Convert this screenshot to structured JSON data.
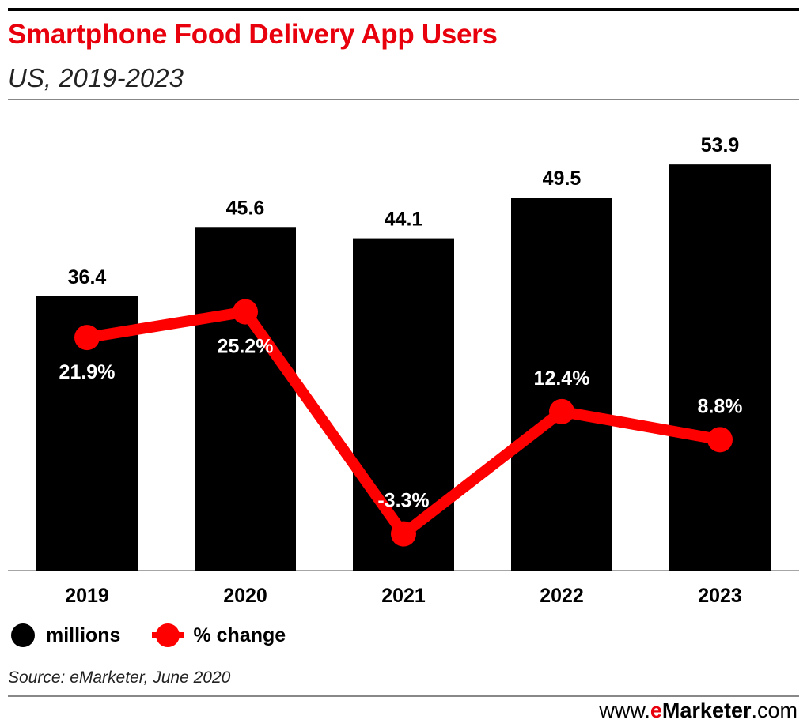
{
  "header": {
    "title": "Smartphone Food Delivery App Users",
    "subtitle": "US, 2019-2023"
  },
  "chart_data": {
    "type": "bar",
    "title": "Smartphone Food Delivery App Users",
    "subtitle": "US, 2019-2023",
    "categories": [
      "2019",
      "2020",
      "2021",
      "2022",
      "2023"
    ],
    "series": [
      {
        "name": "millions",
        "type": "bar",
        "values": [
          36.4,
          45.6,
          44.1,
          49.5,
          53.9
        ],
        "labels": [
          "36.4",
          "45.6",
          "44.1",
          "49.5",
          "53.9"
        ],
        "color": "#000000"
      },
      {
        "name": "% change",
        "type": "line",
        "values": [
          21.9,
          25.2,
          -3.3,
          12.4,
          8.8
        ],
        "labels": [
          "21.9%",
          "25.2%",
          "-3.3%",
          "12.4%",
          "8.8%"
        ],
        "color": "#ff0000"
      }
    ],
    "bar_ylim": [
      0,
      60
    ],
    "line_ylim": [
      -8,
      50
    ],
    "xlabel": "",
    "ylabel": "",
    "grid": false,
    "legend": "bottom-left"
  },
  "legend": {
    "bar_label": "millions",
    "line_label": "% change",
    "bar_color": "#000000",
    "line_color": "#ff0000"
  },
  "footer": {
    "source": "Source: eMarketer, June 2020",
    "brand_prefix": "www.",
    "brand_e": "e",
    "brand_name": "Marketer",
    "brand_suffix": ".com"
  }
}
